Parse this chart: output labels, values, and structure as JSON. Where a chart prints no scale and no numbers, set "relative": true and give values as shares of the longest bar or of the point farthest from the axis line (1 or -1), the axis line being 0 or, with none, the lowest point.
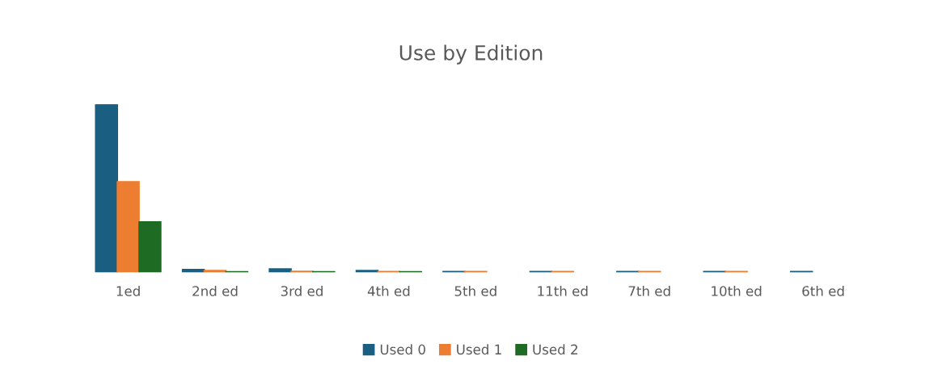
{
  "chart_data": {
    "type": "bar",
    "title": "Use by Edition",
    "relative": true,
    "legend": "bottom",
    "grid": false,
    "categories": [
      "1ed",
      "2nd ed",
      "3rd ed",
      "4th ed",
      "5th ed",
      "11th ed",
      "7th ed",
      "10th ed",
      "6th ed"
    ],
    "series": [
      {
        "name": "Used 0",
        "color": "#1a5f82",
        "values": [
          1,
          0.017,
          0.02,
          0.01,
          0.004,
          0.004,
          0.004,
          0.004,
          0.004
        ]
      },
      {
        "name": "Used 1",
        "color": "#ed7d31",
        "values": [
          0.54,
          0.01,
          0.006,
          0.004,
          0.004,
          0.004,
          0.004,
          0.004,
          null
        ]
      },
      {
        "name": "Used 2",
        "color": "#1e6b24",
        "values": [
          0.3,
          0.003,
          0.003,
          0.003,
          null,
          null,
          null,
          null,
          null
        ]
      }
    ]
  }
}
